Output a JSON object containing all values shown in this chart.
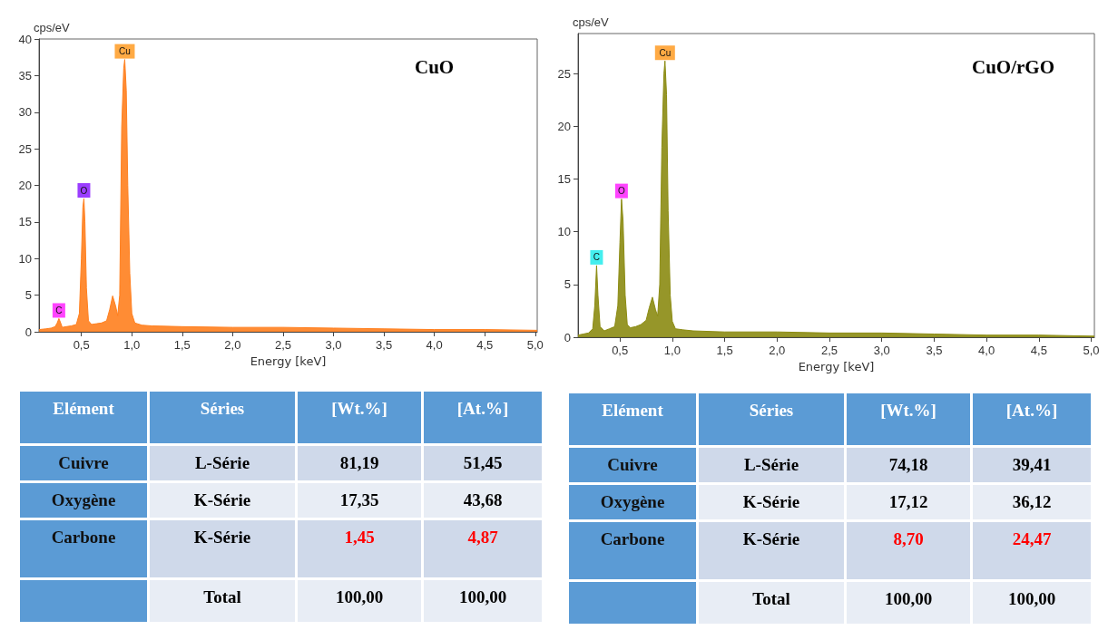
{
  "chart_data": [
    {
      "type": "area",
      "title": "CuO",
      "xlabel": "Energy [keV]",
      "ylabel": "cps/eV",
      "xlim": [
        0.08,
        5.02
      ],
      "ylim": [
        0,
        40
      ],
      "xticks": [
        {
          "value": 0.5,
          "label": "0,5"
        },
        {
          "value": 1,
          "label": "1,0"
        },
        {
          "value": 1.5,
          "label": "1,5"
        },
        {
          "value": 2,
          "label": "2,0"
        },
        {
          "value": 2.5,
          "label": "2,5"
        },
        {
          "value": 3,
          "label": "3,0"
        },
        {
          "value": 3.5,
          "label": "3,5"
        },
        {
          "value": 4,
          "label": "4,0"
        },
        {
          "value": 4.5,
          "label": "4,5"
        },
        {
          "value": 5,
          "label": "5,0"
        }
      ],
      "yticks": [
        0,
        5,
        10,
        15,
        20,
        25,
        30,
        35,
        40
      ],
      "series": [
        {
          "color": "#ff7f1e",
          "x": [
            0.08,
            0.15,
            0.2,
            0.24,
            0.26,
            0.277,
            0.295,
            0.31,
            0.35,
            0.4,
            0.45,
            0.48,
            0.5,
            0.515,
            0.525,
            0.535,
            0.55,
            0.57,
            0.6,
            0.65,
            0.7,
            0.75,
            0.78,
            0.81,
            0.84,
            0.86,
            0.88,
            0.9,
            0.92,
            0.93,
            0.945,
            0.96,
            0.98,
            1.0,
            1.03,
            1.1,
            1.2,
            1.5,
            2.0,
            2.5,
            3.0,
            3.5,
            4.0,
            4.5,
            5.02
          ],
          "values": [
            0.3,
            0.4,
            0.5,
            0.7,
            1.2,
            1.8,
            1.2,
            0.6,
            0.7,
            0.8,
            1.0,
            2.5,
            10,
            17,
            18.2,
            15,
            6,
            1.5,
            1.0,
            1.1,
            1.2,
            1.5,
            3,
            4.9,
            3.5,
            2.2,
            5,
            28,
            36,
            37.2,
            33,
            20,
            8,
            2.5,
            1.2,
            0.9,
            0.8,
            0.7,
            0.6,
            0.6,
            0.5,
            0.4,
            0.3,
            0.3,
            0.2
          ]
        }
      ],
      "annotations": [
        {
          "text": "C",
          "x": 0.277,
          "y": 1.8
        },
        {
          "text": "O",
          "x": 0.525,
          "y": 18.2
        },
        {
          "text": "Cu",
          "x": 0.93,
          "y": 37.2
        }
      ],
      "grid": false,
      "marker": "none"
    },
    {
      "type": "area",
      "title": "CuO/rGO",
      "xlabel": "Energy [keV]",
      "ylabel": "cps/eV",
      "xlim": [
        0.1,
        5.03
      ],
      "ylim": [
        0,
        28.8
      ],
      "xticks": [
        {
          "value": 0.5,
          "label": "0,5"
        },
        {
          "value": 1,
          "label": "1,0"
        },
        {
          "value": 1.5,
          "label": "1,5"
        },
        {
          "value": 2,
          "label": "2,0"
        },
        {
          "value": 2.5,
          "label": "2,5"
        },
        {
          "value": 3,
          "label": "3,0"
        },
        {
          "value": 3.5,
          "label": "3,5"
        },
        {
          "value": 4,
          "label": "4,0"
        },
        {
          "value": 4.5,
          "label": "4,5"
        },
        {
          "value": 5,
          "label": "5,0"
        }
      ],
      "yticks": [
        0,
        5,
        10,
        15,
        20,
        25
      ],
      "series": [
        {
          "color": "#8b8b12",
          "x": [
            0.1,
            0.15,
            0.2,
            0.24,
            0.26,
            0.277,
            0.29,
            0.31,
            0.35,
            0.4,
            0.45,
            0.48,
            0.5,
            0.515,
            0.53,
            0.55,
            0.57,
            0.6,
            0.65,
            0.7,
            0.75,
            0.78,
            0.81,
            0.84,
            0.86,
            0.88,
            0.9,
            0.92,
            0.93,
            0.945,
            0.96,
            0.98,
            1.0,
            1.03,
            1.1,
            1.2,
            1.5,
            2.0,
            2.5,
            3.0,
            3.5,
            4.0,
            4.5,
            5.03
          ],
          "values": [
            0.2,
            0.3,
            0.4,
            0.8,
            3,
            6.8,
            4,
            1,
            0.6,
            0.8,
            1.0,
            3,
            9,
            13.1,
            11,
            4,
            1.2,
            0.9,
            1.0,
            1.2,
            1.6,
            2.8,
            3.8,
            2.6,
            2.0,
            5,
            18,
            25,
            26.2,
            23,
            12,
            4,
            1.5,
            0.8,
            0.7,
            0.6,
            0.5,
            0.5,
            0.4,
            0.4,
            0.3,
            0.2,
            0.2,
            0.1
          ]
        }
      ],
      "annotations": [
        {
          "text": "C",
          "x": 0.277,
          "y": 6.8
        },
        {
          "text": "O",
          "x": 0.515,
          "y": 13.1
        },
        {
          "text": "Cu",
          "x": 0.93,
          "y": 26.2
        }
      ],
      "grid": false,
      "marker": "none"
    },
    {
      "type": "other",
      "categories": [
        "Elément",
        "Séries",
        "[Wt.%]",
        "[At.%]"
      ],
      "y_categories": [
        "Cuivre",
        "Oxygène",
        "Carbone",
        null
      ],
      "cell_labels": [
        [
          "L-Série",
          "81,19",
          "51,45"
        ],
        [
          "K-Série",
          "17,35",
          "43,68"
        ],
        [
          "K-Série",
          "1,45",
          "4,87"
        ],
        [
          "Total",
          "100,00",
          "100,00"
        ]
      ],
      "colors": [
        [
          "#000000",
          "#000000",
          "#000000"
        ],
        [
          "#000000",
          "#000000",
          "#000000"
        ],
        [
          "#000000",
          "#ff0000",
          "#ff0000"
        ],
        [
          "#000000",
          "#000000",
          "#000000"
        ]
      ]
    },
    {
      "type": "other",
      "categories": [
        "Elément",
        "Séries",
        "[Wt.%]",
        "[At.%]"
      ],
      "y_categories": [
        "Cuivre",
        "Oxygène",
        "Carbone",
        null
      ],
      "cell_labels": [
        [
          "L-Série",
          "74,18",
          "39,41"
        ],
        [
          "K-Série",
          "17,12",
          "36,12"
        ],
        [
          "K-Série",
          "8,70",
          "24,47"
        ],
        [
          "Total",
          "100,00",
          "100,00"
        ]
      ],
      "colors": [
        [
          "#000000",
          "#000000",
          "#000000"
        ],
        [
          "#000000",
          "#000000",
          "#000000"
        ],
        [
          "#000000",
          "#ff0000",
          "#ff0000"
        ],
        [
          "#000000",
          "#000000",
          "#000000"
        ]
      ]
    }
  ]
}
